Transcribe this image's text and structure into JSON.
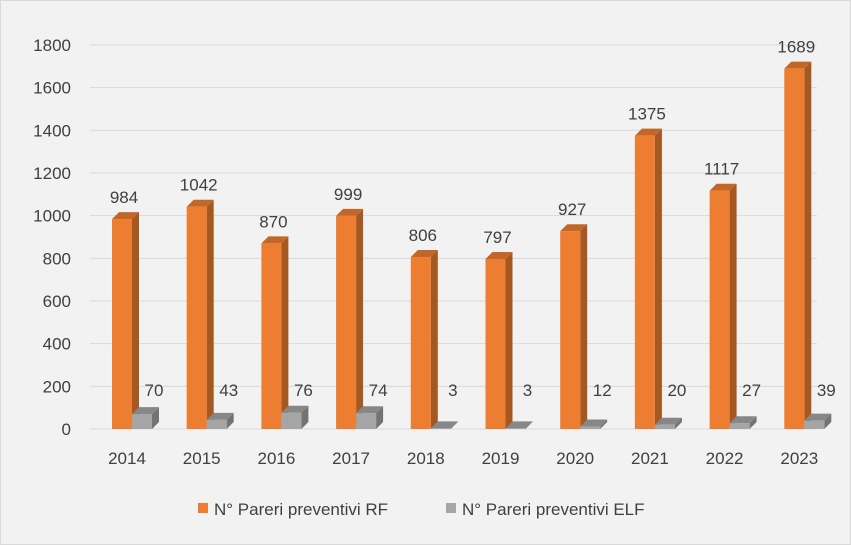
{
  "chart_data": {
    "type": "bar",
    "title": "",
    "xlabel": "",
    "ylabel": "",
    "ylim": [
      0,
      1800
    ],
    "yticks": [
      0,
      200,
      400,
      600,
      800,
      1000,
      1200,
      1400,
      1600,
      1800
    ],
    "grid": true,
    "legend_position": "bottom",
    "categories": [
      "2014",
      "2015",
      "2016",
      "2017",
      "2018",
      "2019",
      "2020",
      "2021",
      "2022",
      "2023"
    ],
    "series": [
      {
        "name": "N° Pareri preventivi RF",
        "color": "#ed7d31",
        "values": [
          984,
          1042,
          870,
          999,
          806,
          797,
          927,
          1375,
          1117,
          1689
        ]
      },
      {
        "name": "N° Pareri preventivi ELF",
        "color": "#a5a5a5",
        "values": [
          70,
          43,
          76,
          74,
          3,
          3,
          12,
          20,
          27,
          39
        ]
      }
    ]
  }
}
